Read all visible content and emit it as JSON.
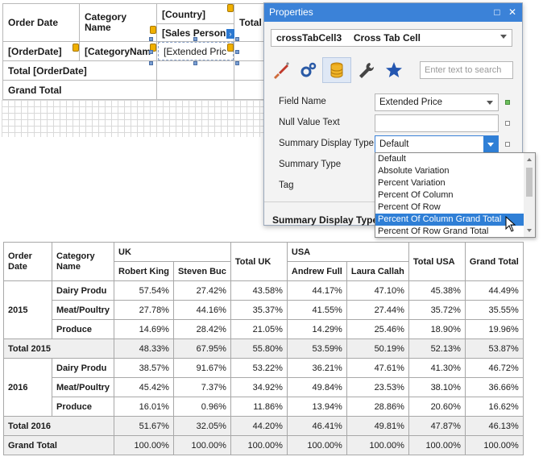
{
  "designer": {
    "headers": {
      "order_date": "Order Date",
      "category_name": "Category Name",
      "country": "[Country]",
      "total": "Total",
      "sales_person": "[Sales Person",
      "order_date_field": "[OrderDate]",
      "category_field": "[CategoryNam",
      "extended_price": "[Extended Pric",
      "total_order_date": "Total [OrderDate]",
      "grand_total": "Grand Total"
    }
  },
  "properties": {
    "title": "Properties",
    "object_name": "crossTabCell3",
    "object_type": "Cross Tab Cell",
    "search_placeholder": "Enter text to search",
    "rows": [
      {
        "label": "Field Name",
        "value": "Extended Price"
      },
      {
        "label": "Null Value Text",
        "value": ""
      },
      {
        "label": "Summary Display Type",
        "value": "Default"
      },
      {
        "label": "Summary Type",
        "value": ""
      },
      {
        "label": "Tag",
        "value": ""
      }
    ],
    "section_caption": "Summary Display Type",
    "dropdown_options": [
      "Default",
      "Absolute Variation",
      "Percent Variation",
      "Percent Of Column",
      "Percent Of Row",
      "Percent Of Column Grand Total",
      "Percent Of Row Grand Total"
    ],
    "highlighted_option": "Percent Of Column Grand Total",
    "colors": {
      "accent": "#3b82d8",
      "field_marker": "#6cbf5c"
    }
  },
  "preview": {
    "h_order_date": "Order Date",
    "h_category_name": "Category Name",
    "uk": "UK",
    "usa": "USA",
    "robert_king": "Robert King",
    "steven_buc": "Steven Buc",
    "total_uk": "Total UK",
    "andrew_full": "Andrew Full",
    "laura_callah": "Laura Callah",
    "total_usa": "Total USA",
    "grand_total": "Grand Total",
    "rows": [
      {
        "year": "2015",
        "category": "Dairy Produ",
        "values": [
          "57.54%",
          "27.42%",
          "43.58%",
          "44.17%",
          "47.10%",
          "45.38%",
          "44.49%"
        ]
      },
      {
        "year": "",
        "category": "Meat/Poultry",
        "values": [
          "27.78%",
          "44.16%",
          "35.37%",
          "41.55%",
          "27.44%",
          "35.72%",
          "35.55%"
        ]
      },
      {
        "year": "",
        "category": "Produce",
        "values": [
          "14.69%",
          "28.42%",
          "21.05%",
          "14.29%",
          "25.46%",
          "18.90%",
          "19.96%"
        ]
      },
      {
        "total_label": "Total 2015",
        "values": [
          "48.33%",
          "67.95%",
          "55.80%",
          "53.59%",
          "50.19%",
          "52.13%",
          "53.87%"
        ]
      },
      {
        "year": "2016",
        "category": "Dairy Produ",
        "values": [
          "38.57%",
          "91.67%",
          "53.22%",
          "36.21%",
          "47.61%",
          "41.30%",
          "46.72%"
        ]
      },
      {
        "year": "",
        "category": "Meat/Poultry",
        "values": [
          "45.42%",
          "7.37%",
          "34.92%",
          "49.84%",
          "23.53%",
          "38.10%",
          "36.66%"
        ]
      },
      {
        "year": "",
        "category": "Produce",
        "values": [
          "16.01%",
          "0.96%",
          "11.86%",
          "13.94%",
          "28.86%",
          "20.60%",
          "16.62%"
        ]
      },
      {
        "total_label": "Total 2016",
        "values": [
          "51.67%",
          "32.05%",
          "44.20%",
          "46.41%",
          "49.81%",
          "47.87%",
          "46.13%"
        ]
      },
      {
        "total_label": "Grand Total",
        "values": [
          "100.00%",
          "100.00%",
          "100.00%",
          "100.00%",
          "100.00%",
          "100.00%",
          "100.00%"
        ]
      }
    ]
  }
}
